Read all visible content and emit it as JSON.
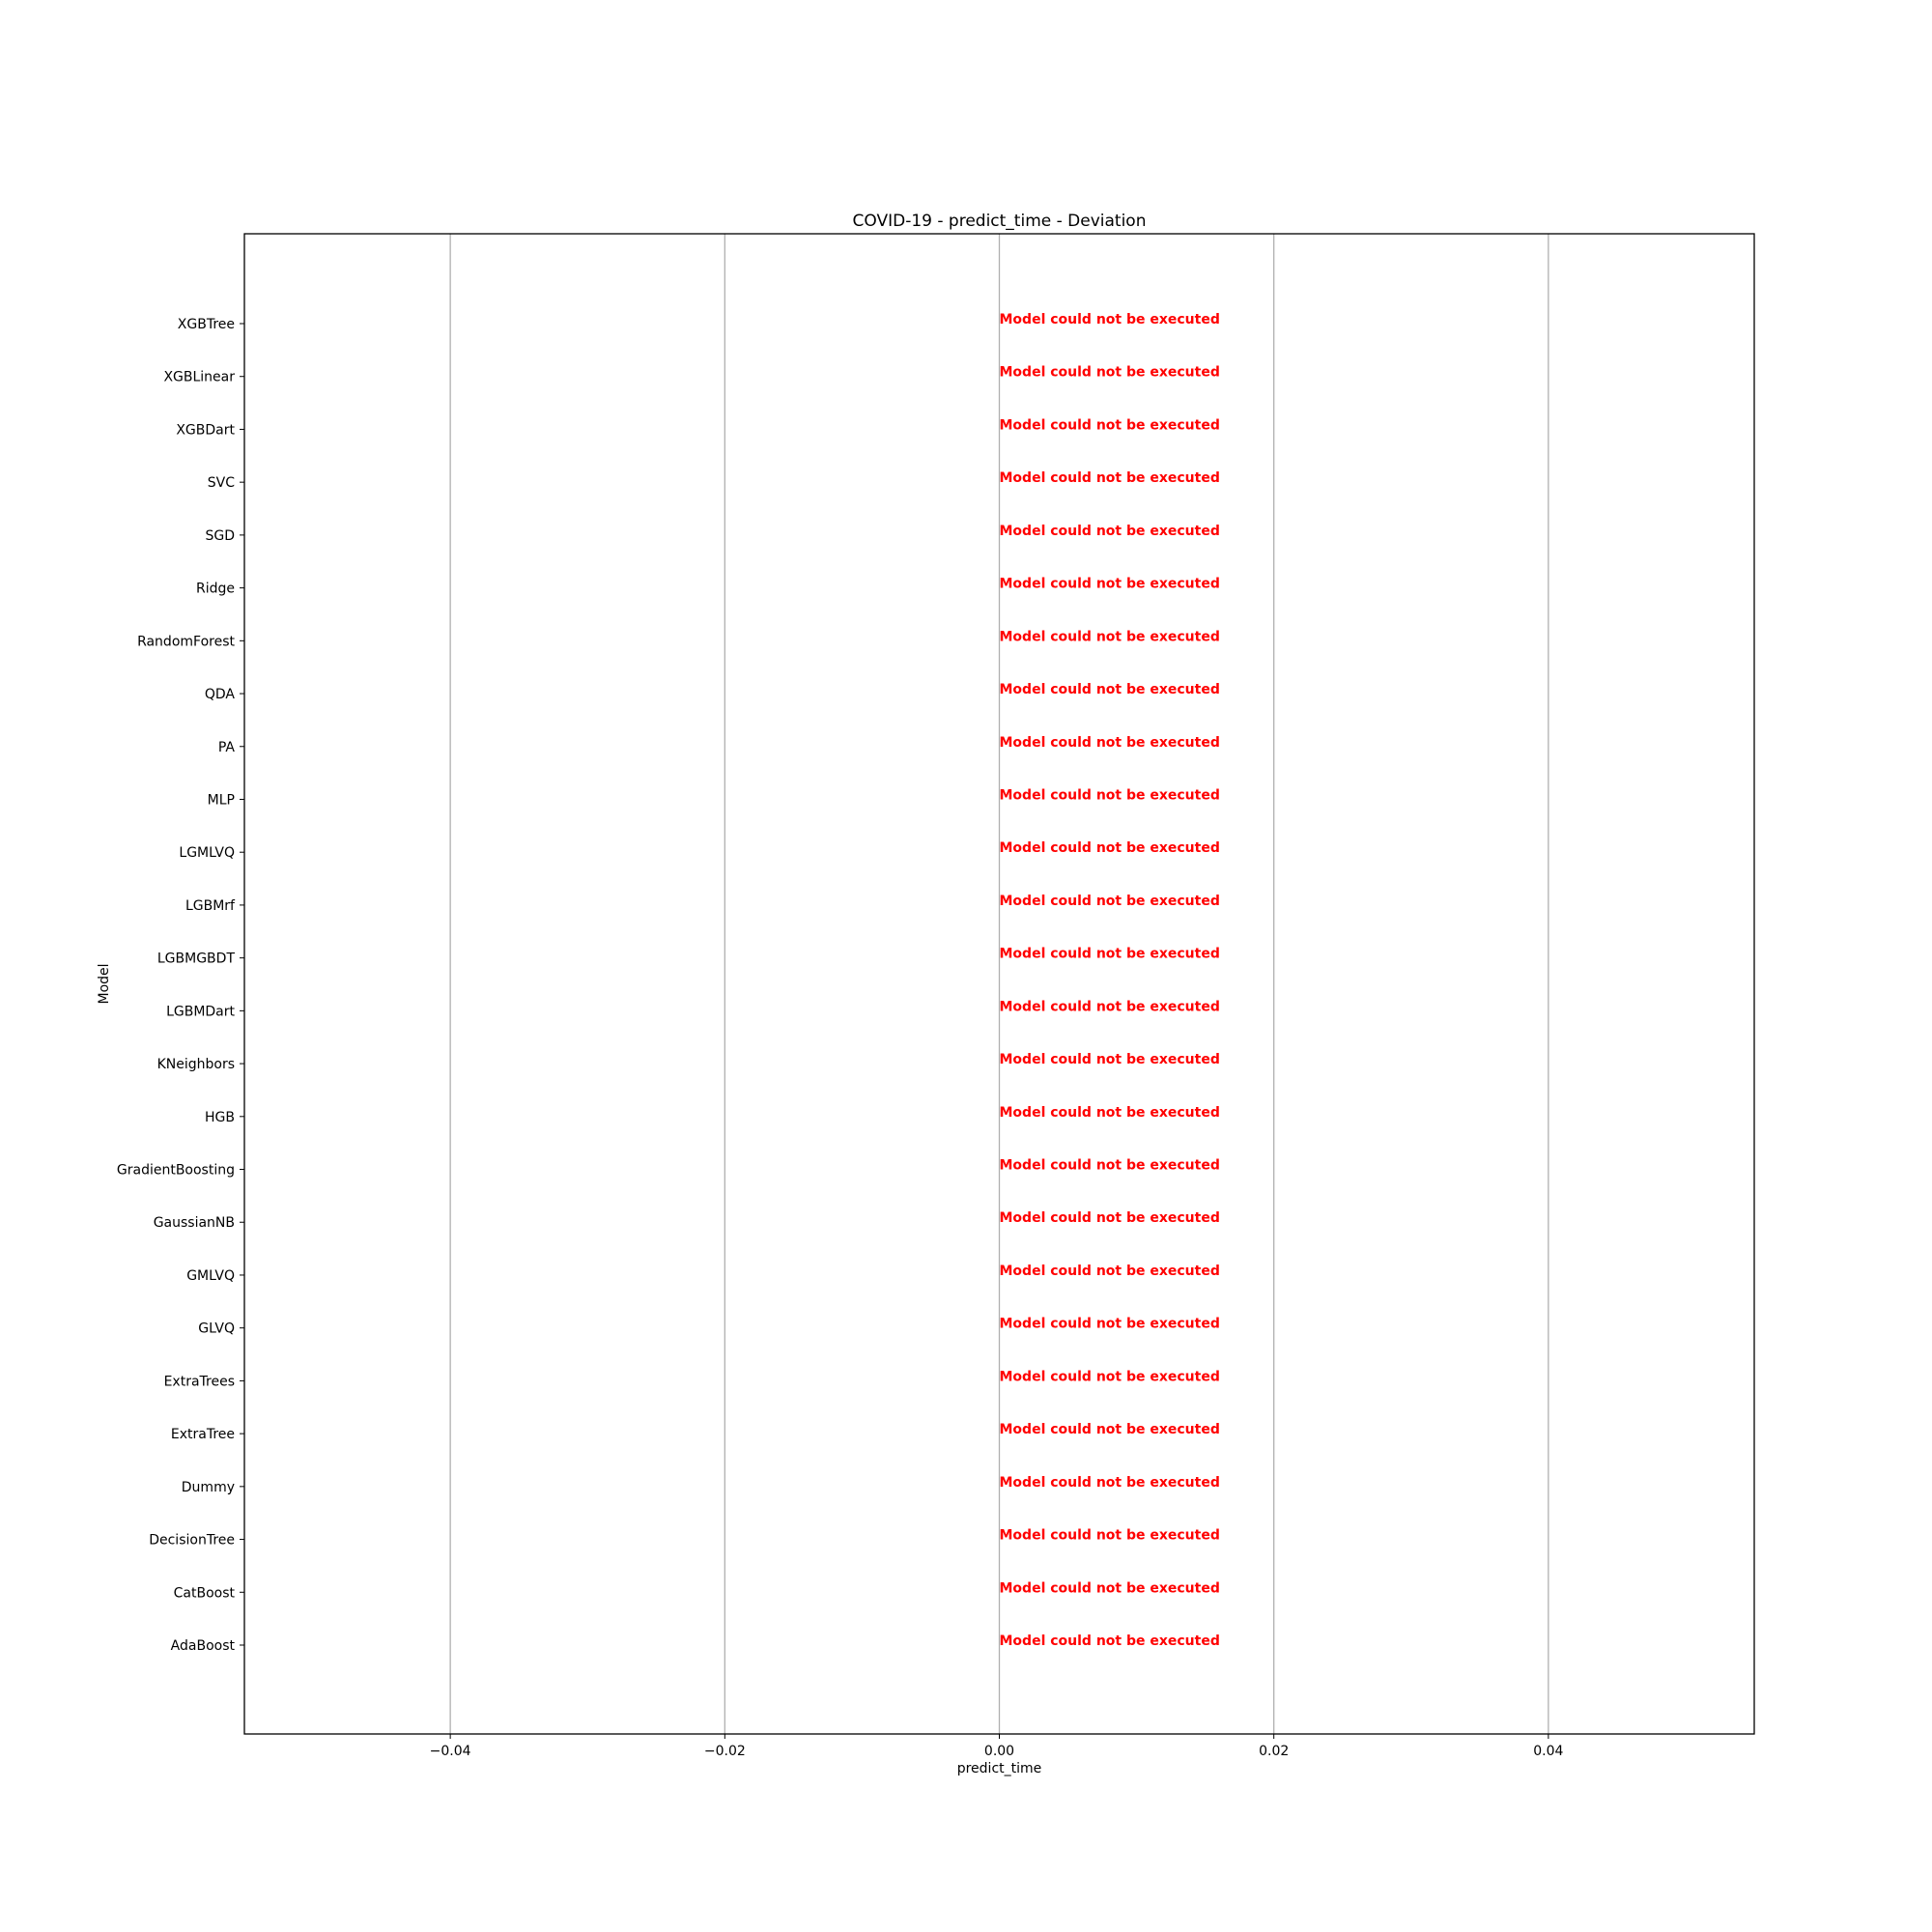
{
  "chart_data": {
    "type": "bar",
    "orientation": "horizontal",
    "title": "COVID-19 - predict_time - Deviation",
    "xlabel": "predict_time",
    "ylabel": "Model",
    "xlim": [
      -0.055,
      0.055
    ],
    "x_ticks": [
      -0.04,
      -0.02,
      0.0,
      0.02,
      0.04
    ],
    "x_tick_labels": [
      "−0.04",
      "−0.02",
      "0.00",
      "0.02",
      "0.04"
    ],
    "grid": "vertical",
    "categories": [
      "XGBTree",
      "XGBLinear",
      "XGBDart",
      "SVC",
      "SGD",
      "Ridge",
      "RandomForest",
      "QDA",
      "PA",
      "MLP",
      "LGMLVQ",
      "LGBMrf",
      "LGBMGBDT",
      "LGBMDart",
      "KNeighbors",
      "HGB",
      "GradientBoosting",
      "GaussianNB",
      "GMLVQ",
      "GLVQ",
      "ExtraTrees",
      "ExtraTree",
      "Dummy",
      "DecisionTree",
      "CatBoost",
      "AdaBoost"
    ],
    "values": [
      null,
      null,
      null,
      null,
      null,
      null,
      null,
      null,
      null,
      null,
      null,
      null,
      null,
      null,
      null,
      null,
      null,
      null,
      null,
      null,
      null,
      null,
      null,
      null,
      null,
      null
    ],
    "annotations": [
      "Model could not be executed",
      "Model could not be executed",
      "Model could not be executed",
      "Model could not be executed",
      "Model could not be executed",
      "Model could not be executed",
      "Model could not be executed",
      "Model could not be executed",
      "Model could not be executed",
      "Model could not be executed",
      "Model could not be executed",
      "Model could not be executed",
      "Model could not be executed",
      "Model could not be executed",
      "Model could not be executed",
      "Model could not be executed",
      "Model could not be executed",
      "Model could not be executed",
      "Model could not be executed",
      "Model could not be executed",
      "Model could not be executed",
      "Model could not be executed",
      "Model could not be executed",
      "Model could not be executed",
      "Model could not be executed",
      "Model could not be executed"
    ],
    "annotation_x": 0.0,
    "annotation_color": "#ff0000"
  }
}
